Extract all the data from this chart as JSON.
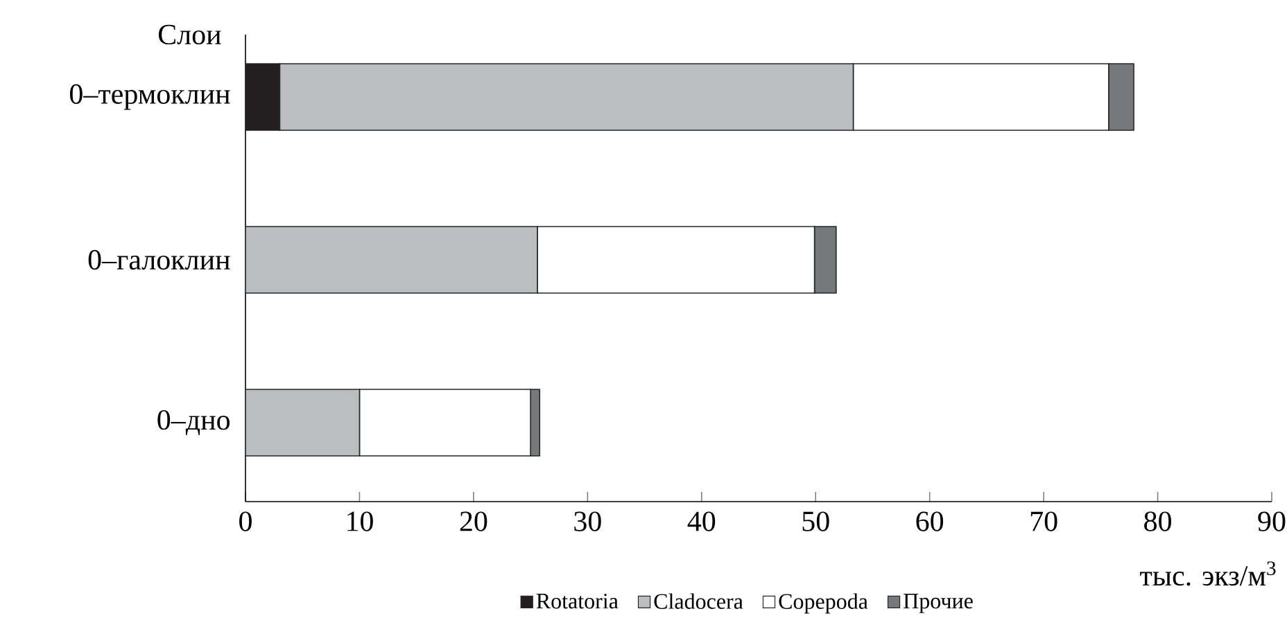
{
  "chart_data": {
    "type": "bar",
    "orientation": "horizontal",
    "stacked": true,
    "ylabel": "Слои",
    "xlabel": "тыс. экз/м$^{3}$",
    "categories": [
      "0–термоклин",
      "0–галоклин",
      "0–дно"
    ],
    "series": [
      {
        "name": "Rotatoria",
        "color": "#231f20",
        "values": [
          3.0,
          0,
          0
        ]
      },
      {
        "name": "Cladocera",
        "color": "#bcbdc0",
        "values": [
          50.3,
          25.6,
          10.0
        ]
      },
      {
        "name": "Copepoda",
        "color": "#ffffff",
        "values": [
          22.4,
          24.3,
          15.0
        ]
      },
      {
        "name": "Прочие",
        "color": "#77787b",
        "values": [
          2.2,
          1.9,
          0.8
        ]
      }
    ],
    "xlim": [
      0,
      90
    ],
    "xticks": [
      0,
      10,
      20,
      30,
      40,
      50,
      60,
      70,
      80,
      90
    ],
    "legend": "bottom",
    "grid": false
  }
}
